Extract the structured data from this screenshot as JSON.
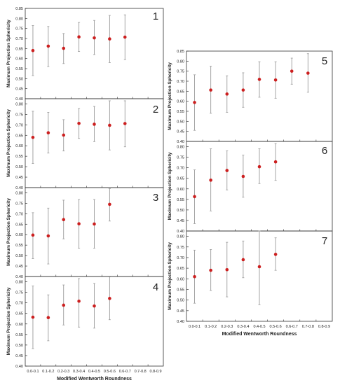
{
  "chart_data": [
    {
      "type": "scatter",
      "panel_label": "1",
      "ylabel": "Maximum Projection Sphericity",
      "xlabel": "",
      "categories": [
        "0.0-0.1",
        "0.1-0.2",
        "0.2-0.3",
        "0.3-0.4",
        "0.4-0.5",
        "0.5-0.6",
        "0.6-0.7",
        "0.7-0.8",
        "0.8-0.9"
      ],
      "yticks": [
        "0.40",
        "0.45",
        "0.50",
        "0.55",
        "0.60",
        "0.65",
        "0.70",
        "0.75",
        "0.80",
        "0.85"
      ],
      "ylim": [
        0.4,
        0.85
      ],
      "show_xticks": false,
      "points": [
        {
          "x": "0.0-0.1",
          "y": 0.64,
          "low": 0.515,
          "high": 0.765
        },
        {
          "x": "0.1-0.2",
          "y": 0.662,
          "low": 0.56,
          "high": 0.76
        },
        {
          "x": "0.2-0.3",
          "y": 0.651,
          "low": 0.575,
          "high": 0.725
        },
        {
          "x": "0.3-0.4",
          "y": 0.708,
          "low": 0.635,
          "high": 0.78
        },
        {
          "x": "0.4-0.5",
          "y": 0.703,
          "low": 0.62,
          "high": 0.79
        },
        {
          "x": "0.5-0.6",
          "y": 0.698,
          "low": 0.58,
          "high": 0.815
        },
        {
          "x": "0.6-0.7",
          "y": 0.707,
          "low": 0.595,
          "high": 0.818
        }
      ]
    },
    {
      "type": "scatter",
      "panel_label": "2",
      "ylabel": "Maximum Projection Sphericity",
      "xlabel": "",
      "categories": [
        "0.0-0.1",
        "0.1-0.2",
        "0.2-0.3",
        "0.3-0.4",
        "0.4-0.5",
        "0.5-0.6",
        "0.6-0.7",
        "0.7-0.8",
        "0.8-0.9"
      ],
      "yticks": [
        "0.40",
        "0.45",
        "0.50",
        "0.55",
        "0.60",
        "0.65",
        "0.70",
        "0.75",
        "0.80"
      ],
      "ylim": [
        0.4,
        0.825
      ],
      "show_xticks": false,
      "points": [
        {
          "x": "0.0-0.1",
          "y": 0.64,
          "low": 0.515,
          "high": 0.765
        },
        {
          "x": "0.1-0.2",
          "y": 0.662,
          "low": 0.565,
          "high": 0.76
        },
        {
          "x": "0.2-0.3",
          "y": 0.651,
          "low": 0.575,
          "high": 0.725
        },
        {
          "x": "0.3-0.4",
          "y": 0.707,
          "low": 0.635,
          "high": 0.778
        },
        {
          "x": "0.4-0.5",
          "y": 0.703,
          "low": 0.62,
          "high": 0.788
        },
        {
          "x": "0.5-0.6",
          "y": 0.698,
          "low": 0.58,
          "high": 0.815
        },
        {
          "x": "0.6-0.7",
          "y": 0.706,
          "low": 0.595,
          "high": 0.815
        }
      ]
    },
    {
      "type": "scatter",
      "panel_label": "3",
      "ylabel": "Maximum Projection Sphericity",
      "xlabel": "",
      "categories": [
        "0.0-0.1",
        "0.1-0.2",
        "0.2-0.3",
        "0.3-0.4",
        "0.4-0.5",
        "0.5-0.6",
        "0.6-0.7",
        "0.7-0.8",
        "0.8-0.9"
      ],
      "yticks": [
        "0.40",
        "0.45",
        "0.50",
        "0.55",
        "0.60",
        "0.65",
        "0.70",
        "0.75",
        "0.80"
      ],
      "ylim": [
        0.4,
        0.825
      ],
      "show_xticks": false,
      "points": [
        {
          "x": "0.0-0.1",
          "y": 0.598,
          "low": 0.485,
          "high": 0.705
        },
        {
          "x": "0.1-0.2",
          "y": 0.594,
          "low": 0.46,
          "high": 0.727
        },
        {
          "x": "0.2-0.3",
          "y": 0.672,
          "low": 0.58,
          "high": 0.765
        },
        {
          "x": "0.3-0.4",
          "y": 0.652,
          "low": 0.535,
          "high": 0.768
        },
        {
          "x": "0.4-0.5",
          "y": 0.651,
          "low": 0.535,
          "high": 0.768
        },
        {
          "x": "0.5-0.6",
          "y": 0.745,
          "low": 0.665,
          "high": 0.82
        }
      ]
    },
    {
      "type": "scatter",
      "panel_label": "4",
      "ylabel": "Maximum Projection Sphericity",
      "xlabel": "Modified Wentworth Roundness",
      "categories": [
        "0.0-0.1",
        "0.1-0.2",
        "0.2-0.3",
        "0.3-0.4",
        "0.4-0.5",
        "0.5-0.6",
        "0.6-0.7",
        "0.7-0.8",
        "0.8-0.9"
      ],
      "yticks": [
        "0.40",
        "0.45",
        "0.50",
        "0.55",
        "0.60",
        "0.65",
        "0.70",
        "0.75",
        "0.80"
      ],
      "ylim": [
        0.4,
        0.825
      ],
      "show_xticks": true,
      "points": [
        {
          "x": "0.0-0.1",
          "y": 0.632,
          "low": 0.483,
          "high": 0.78
        },
        {
          "x": "0.1-0.2",
          "y": 0.63,
          "low": 0.52,
          "high": 0.738
        },
        {
          "x": "0.2-0.3",
          "y": 0.689,
          "low": 0.595,
          "high": 0.785
        },
        {
          "x": "0.3-0.4",
          "y": 0.708,
          "low": 0.585,
          "high": 0.815
        },
        {
          "x": "0.4-0.5",
          "y": 0.685,
          "low": 0.58,
          "high": 0.792
        },
        {
          "x": "0.5-0.6",
          "y": 0.721,
          "low": 0.62,
          "high": 0.823
        }
      ]
    },
    {
      "type": "scatter",
      "panel_label": "5",
      "ylabel": "Maximum Projection Sphericity",
      "xlabel": "",
      "categories": [
        "0.0-0.1",
        "0.1-0.2",
        "0.2-0.3",
        "0.3-0.4",
        "0.4-0.5",
        "0.5-0.6",
        "0.6-0.7",
        "0.7-0.8",
        "0.8-0.9"
      ],
      "yticks": [
        "0.40",
        "0.45",
        "0.50",
        "0.55",
        "0.60",
        "0.65",
        "0.70",
        "0.75",
        "0.80",
        "0.85"
      ],
      "ylim": [
        0.4,
        0.85
      ],
      "show_xticks": false,
      "points": [
        {
          "x": "0.0-0.1",
          "y": 0.594,
          "low": 0.455,
          "high": 0.732
        },
        {
          "x": "0.1-0.2",
          "y": 0.656,
          "low": 0.54,
          "high": 0.775
        },
        {
          "x": "0.2-0.3",
          "y": 0.636,
          "low": 0.545,
          "high": 0.727
        },
        {
          "x": "0.3-0.4",
          "y": 0.656,
          "low": 0.57,
          "high": 0.742
        },
        {
          "x": "0.4-0.5",
          "y": 0.709,
          "low": 0.62,
          "high": 0.797
        },
        {
          "x": "0.5-0.6",
          "y": 0.706,
          "low": 0.615,
          "high": 0.797
        },
        {
          "x": "0.6-0.7",
          "y": 0.75,
          "low": 0.685,
          "high": 0.815
        },
        {
          "x": "0.7-0.8",
          "y": 0.74,
          "low": 0.645,
          "high": 0.837
        }
      ]
    },
    {
      "type": "scatter",
      "panel_label": "6",
      "ylabel": "Maximum Projection Sphericity",
      "xlabel": "",
      "categories": [
        "0.0-0.1",
        "0.1-0.2",
        "0.2-0.3",
        "0.3-0.4",
        "0.4-0.5",
        "0.5-0.6",
        "0.6-0.7",
        "0.7-0.8",
        "0.8-0.9"
      ],
      "yticks": [
        "0.40",
        "0.45",
        "0.50",
        "0.55",
        "0.60",
        "0.65",
        "0.70",
        "0.75",
        "0.80"
      ],
      "ylim": [
        0.4,
        0.825
      ],
      "show_xticks": false,
      "points": [
        {
          "x": "0.0-0.1",
          "y": 0.563,
          "low": 0.435,
          "high": 0.69
        },
        {
          "x": "0.1-0.2",
          "y": 0.641,
          "low": 0.495,
          "high": 0.79
        },
        {
          "x": "0.2-0.3",
          "y": 0.687,
          "low": 0.595,
          "high": 0.78
        },
        {
          "x": "0.3-0.4",
          "y": 0.659,
          "low": 0.56,
          "high": 0.76
        },
        {
          "x": "0.4-0.5",
          "y": 0.705,
          "low": 0.625,
          "high": 0.79
        },
        {
          "x": "0.5-0.6",
          "y": 0.728,
          "low": 0.64,
          "high": 0.815
        }
      ]
    },
    {
      "type": "scatter",
      "panel_label": "7",
      "ylabel": "Maximum Projection Sphericity",
      "xlabel": "Modified Wentworth Roundness",
      "categories": [
        "0.0-0.1",
        "0.1-0.2",
        "0.2-0.3",
        "0.3-0.4",
        "0.4-0.5",
        "0.5-0.6",
        "0.6-0.7",
        "0.7-0.8",
        "0.8-0.9"
      ],
      "yticks": [
        "0.40",
        "0.45",
        "0.50",
        "0.55",
        "0.60",
        "0.65",
        "0.70",
        "0.75",
        "0.80"
      ],
      "ylim": [
        0.4,
        0.825
      ],
      "show_xticks": true,
      "points": [
        {
          "x": "0.0-0.1",
          "y": 0.61,
          "low": 0.485,
          "high": 0.735
        },
        {
          "x": "0.1-0.2",
          "y": 0.64,
          "low": 0.545,
          "high": 0.738
        },
        {
          "x": "0.2-0.3",
          "y": 0.643,
          "low": 0.515,
          "high": 0.772
        },
        {
          "x": "0.3-0.4",
          "y": 0.69,
          "low": 0.605,
          "high": 0.778
        },
        {
          "x": "0.4-0.5",
          "y": 0.657,
          "low": 0.478,
          "high": 0.825
        },
        {
          "x": "0.5-0.6",
          "y": 0.715,
          "low": 0.64,
          "high": 0.793
        }
      ]
    }
  ],
  "colors": {
    "point": "#cc1f1f",
    "errorbar": "#9a9a9a",
    "axis": "#333333",
    "text": "#222222"
  }
}
